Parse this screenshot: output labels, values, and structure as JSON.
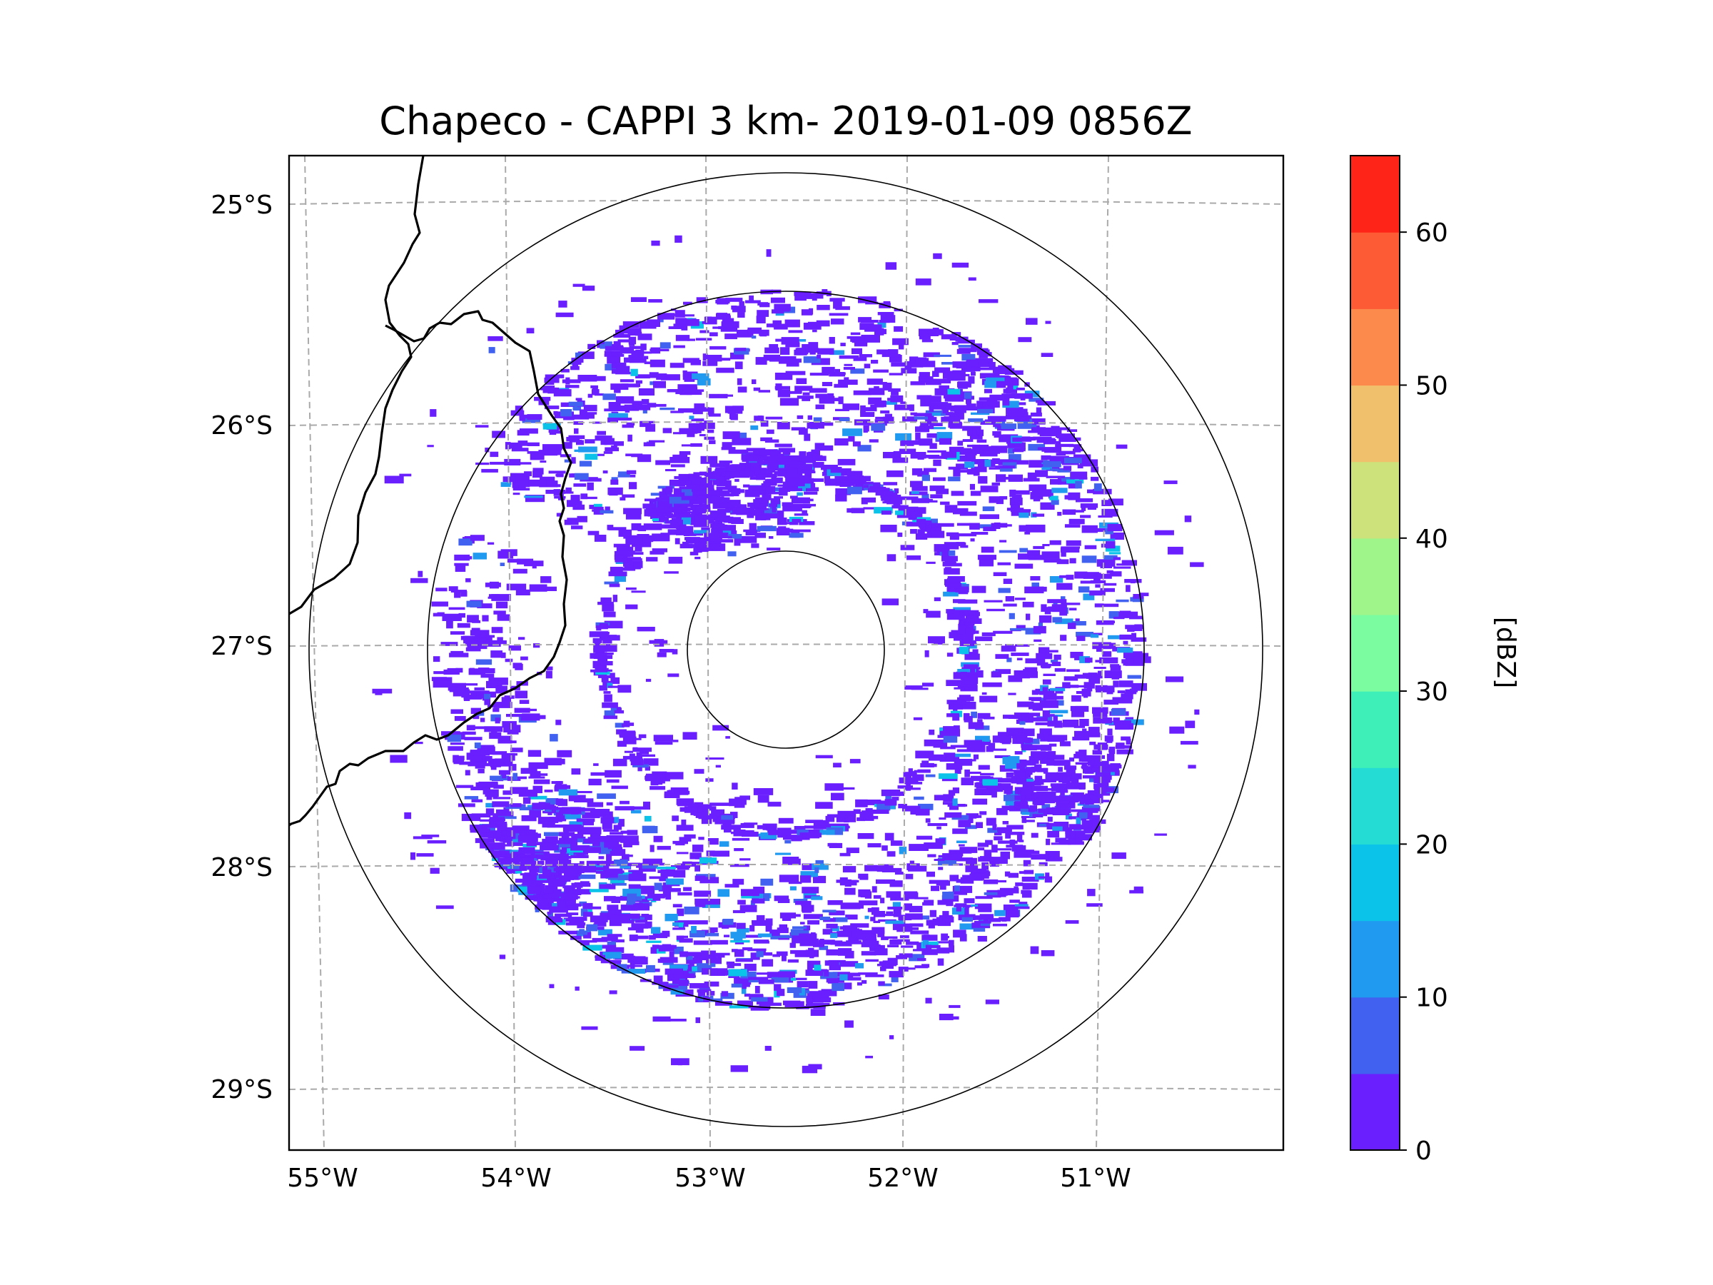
{
  "title": "Chapeco - CAPPI 3 km- 2019-01-09 0856Z",
  "lat_labels": [
    "25°S",
    "26°S",
    "27°S",
    "28°S",
    "29°S"
  ],
  "lon_labels": [
    "55°W",
    "54°W",
    "53°W",
    "52°W",
    "51°W"
  ],
  "colorbar": {
    "label": "[dBZ]",
    "tick_labels": [
      "0",
      "10",
      "20",
      "30",
      "40",
      "50",
      "60"
    ],
    "ticks": [
      0,
      10,
      20,
      30,
      40,
      50,
      60
    ],
    "range": [
      0,
      65
    ],
    "step": 5,
    "colors": [
      "#6a1fff",
      "#4161f0",
      "#1f9af0",
      "#0bc2e8",
      "#24dcd4",
      "#3ef0b8",
      "#7bfca0",
      "#a0f58a",
      "#cde27a",
      "#f1c06c",
      "#fc8a4c",
      "#fd5a36",
      "#fe2417"
    ]
  },
  "radar": {
    "site": "Chapeco",
    "product": "CAPPI 3 km",
    "valid_time": "2019-01-09 0856Z"
  }
}
